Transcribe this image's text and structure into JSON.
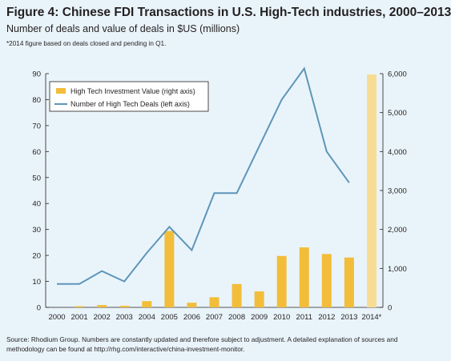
{
  "header": {
    "title": "Figure 4: Chinese FDI Transactions in U.S. High-Tech industries, 2000–2013",
    "subtitle": "Number of deals and value of deals in $US (millions)",
    "note": "*2014 figure based on deals closed and pending in Q1."
  },
  "footer": {
    "source": "Source: Rhodium Group. Numbers are constantly updated and therefore subject to adjustment. A detailed explanation of sources and methodology can be found at http://rhg.com/interactive/china-investment-monitor."
  },
  "colors": {
    "bar": "#f2bd3a",
    "bar_partial": "#f7dd93",
    "line": "#5e95ba",
    "axis": "#231f20",
    "background": "#e9f4fa"
  },
  "chart_data": {
    "type": "bar",
    "categories": [
      "2000",
      "2001",
      "2002",
      "2003",
      "2004",
      "2005",
      "2006",
      "2007",
      "2008",
      "2009",
      "2010",
      "2011",
      "2012",
      "2013",
      "2014*"
    ],
    "left_axis": {
      "ylim": [
        0,
        90
      ],
      "ticks": [
        0,
        10,
        20,
        30,
        40,
        50,
        60,
        70,
        80,
        90
      ]
    },
    "right_axis": {
      "ylim": [
        0,
        6000
      ],
      "ticks": [
        0,
        1000,
        2000,
        3000,
        4000,
        5000,
        6000
      ],
      "tick_labels": [
        "0",
        "1,000",
        "2,000",
        "3,000",
        "4,000",
        "5,000",
        "6,000"
      ]
    },
    "series": [
      {
        "name": "High Tech Investment Value (right axis)",
        "type": "bar",
        "axis": "right",
        "values": [
          0,
          30,
          60,
          40,
          160,
          1960,
          120,
          260,
          600,
          410,
          1320,
          1540,
          1370,
          1280,
          5980
        ]
      },
      {
        "name": "Number of High Tech Deals (left axis)",
        "type": "line",
        "axis": "left",
        "values": [
          9,
          9,
          14,
          10,
          21,
          31,
          22,
          44,
          44,
          62,
          80,
          92,
          60,
          48,
          null
        ]
      }
    ],
    "legend": "top-left"
  }
}
